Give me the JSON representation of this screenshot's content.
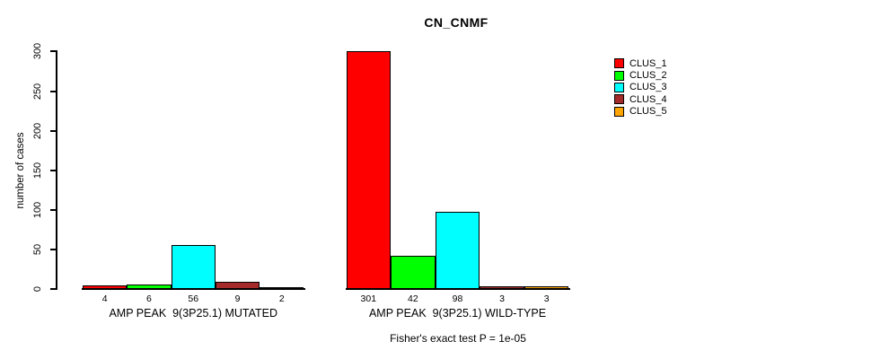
{
  "title": "CN_CNMF",
  "y_axis": {
    "label": "number of cases"
  },
  "footer": {
    "text": "Fisher's exact test P = 1e-05"
  },
  "chart_data": {
    "type": "bar",
    "title": "CN_CNMF",
    "xlabel": "",
    "ylabel": "number of cases",
    "ylim": [
      0,
      300
    ],
    "yticks": [
      0,
      50,
      100,
      150,
      200,
      250,
      300
    ],
    "grid": false,
    "legend_position": "right",
    "bar_value_labels": true,
    "categories": [
      "AMP PEAK  9(3P25.1) MUTATED",
      "AMP PEAK  9(3P25.1) WILD-TYPE"
    ],
    "series": [
      {
        "name": "CLUS_1",
        "color": "#FF0000",
        "values": [
          4,
          301
        ]
      },
      {
        "name": "CLUS_2",
        "color": "#00FF00",
        "values": [
          6,
          42
        ]
      },
      {
        "name": "CLUS_3",
        "color": "#00FFFF",
        "values": [
          56,
          98
        ]
      },
      {
        "name": "CLUS_4",
        "color": "#A52A2A",
        "values": [
          9,
          3
        ]
      },
      {
        "name": "CLUS_5",
        "color": "#FFA500",
        "values": [
          2,
          3
        ]
      }
    ],
    "annotation": "Fisher's exact test P = 1e-05"
  }
}
